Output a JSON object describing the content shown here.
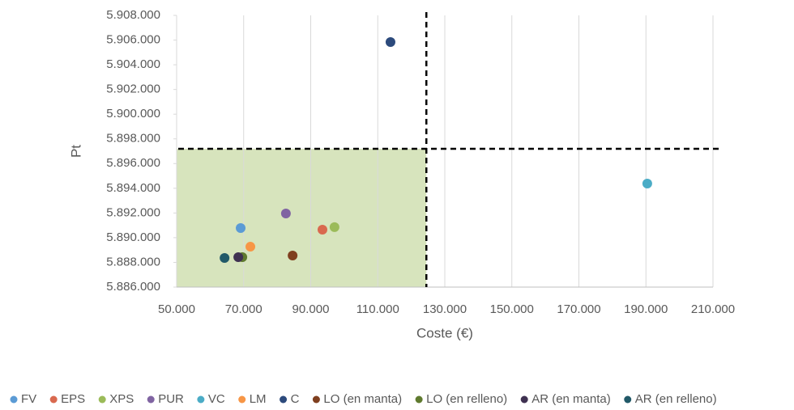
{
  "chart_data": {
    "type": "scatter",
    "x_label": "Coste (€)",
    "y_label": "Pt",
    "xlim": [
      50000,
      210000
    ],
    "xticks": [
      {
        "value": 50000,
        "label": "50.000"
      },
      {
        "value": 70000,
        "label": "70.000"
      },
      {
        "value": 90000,
        "label": "90.000"
      },
      {
        "value": 110000,
        "label": "110.000"
      },
      {
        "value": 130000,
        "label": "130.000"
      },
      {
        "value": 150000,
        "label": "150.000"
      },
      {
        "value": 170000,
        "label": "170.000"
      },
      {
        "value": 190000,
        "label": "190.000"
      },
      {
        "value": 210000,
        "label": "210.000"
      }
    ],
    "ylim": [
      5886000,
      5908000
    ],
    "yticks": [
      {
        "value": 5886000,
        "label": "5.886.000"
      },
      {
        "value": 5888000,
        "label": "5.888.000"
      },
      {
        "value": 5890000,
        "label": "5.890.000"
      },
      {
        "value": 5892000,
        "label": "5.892.000"
      },
      {
        "value": 5894000,
        "label": "5.894.000"
      },
      {
        "value": 5896000,
        "label": "5.896.000"
      },
      {
        "value": 5898000,
        "label": "5.898.000"
      },
      {
        "value": 5900000,
        "label": "5.900.000"
      },
      {
        "value": 5902000,
        "label": "5.902.000"
      },
      {
        "value": 5904000,
        "label": "5.904.000"
      },
      {
        "value": 5906000,
        "label": "5.906.000"
      },
      {
        "value": 5908000,
        "label": "5.908.000"
      }
    ],
    "grid": "x",
    "legend": "bottom",
    "reference_x": 124500,
    "reference_y": 5897200,
    "region_color": "#d7e4bd",
    "series": [
      {
        "name": "FV",
        "color": "#5b9bd5",
        "x": [
          69100
        ],
        "values": [
          5890780
        ]
      },
      {
        "name": "EPS",
        "color": "#d9694f",
        "x": [
          93500
        ],
        "values": [
          5890650
        ]
      },
      {
        "name": "XPS",
        "color": "#9bbb59",
        "x": [
          97100
        ],
        "values": [
          5890850
        ]
      },
      {
        "name": "PUR",
        "color": "#8064a2",
        "x": [
          82600
        ],
        "values": [
          5891960
        ]
      },
      {
        "name": "VC",
        "color": "#4bacc6",
        "x": [
          190400
        ],
        "values": [
          5894380
        ]
      },
      {
        "name": "LM",
        "color": "#f79646",
        "x": [
          72000
        ],
        "values": [
          5889270
        ]
      },
      {
        "name": "C",
        "color": "#2c4a7c",
        "x": [
          113800
        ],
        "values": [
          5905840
        ]
      },
      {
        "name": "LO (en manta)",
        "color": "#7f3f1f",
        "x": [
          84600
        ],
        "values": [
          5888550
        ]
      },
      {
        "name": "LO (en relleno)",
        "color": "#5f7a2e",
        "x": [
          69600
        ],
        "values": [
          5888420
        ]
      },
      {
        "name": "AR (en manta)",
        "color": "#3f3151",
        "x": [
          68400
        ],
        "values": [
          5888420
        ]
      },
      {
        "name": "AR (en relleno)",
        "color": "#215968",
        "x": [
          64300
        ],
        "values": [
          5888360
        ]
      }
    ]
  }
}
